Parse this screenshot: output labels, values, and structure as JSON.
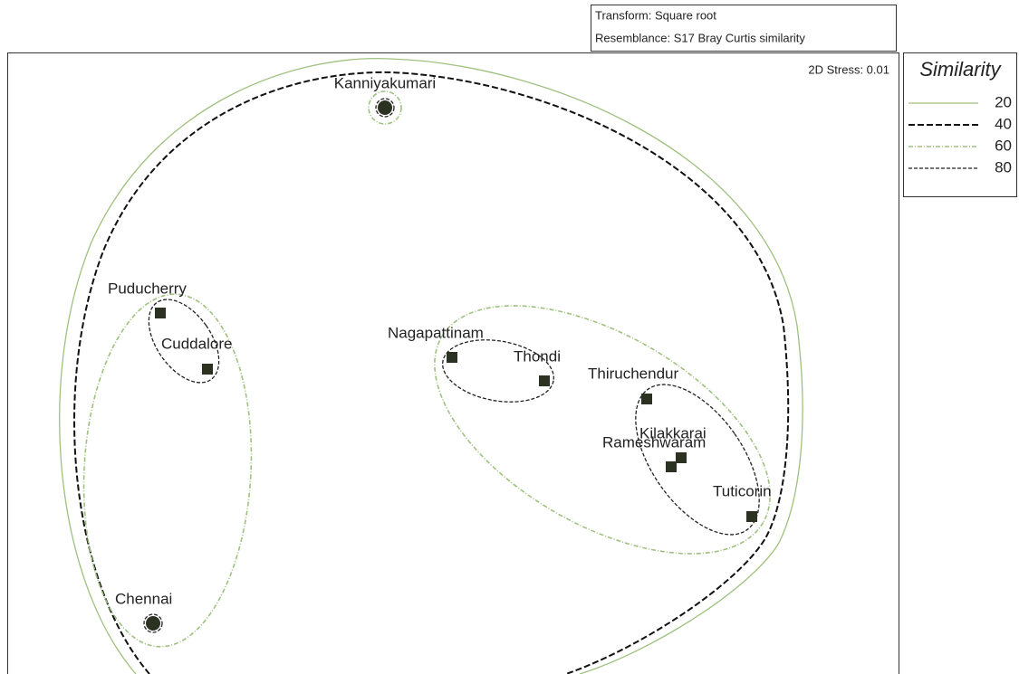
{
  "header": {
    "lines": [
      "Transform: Square root",
      "Resemblance: S17 Bray Curtis similarity"
    ]
  },
  "stress": "2D Stress: 0.01",
  "legend": {
    "title": "Similarity",
    "levels": [
      20,
      40,
      60,
      80
    ]
  },
  "points": [
    "Kanniyakumari",
    "Puducherry",
    "Cuddalore",
    "Chennai",
    "Nagapattinam",
    "Thondi",
    "Thiruchendur",
    "Kilakkarai",
    "Rameshwaram",
    "Tuticorin"
  ]
}
